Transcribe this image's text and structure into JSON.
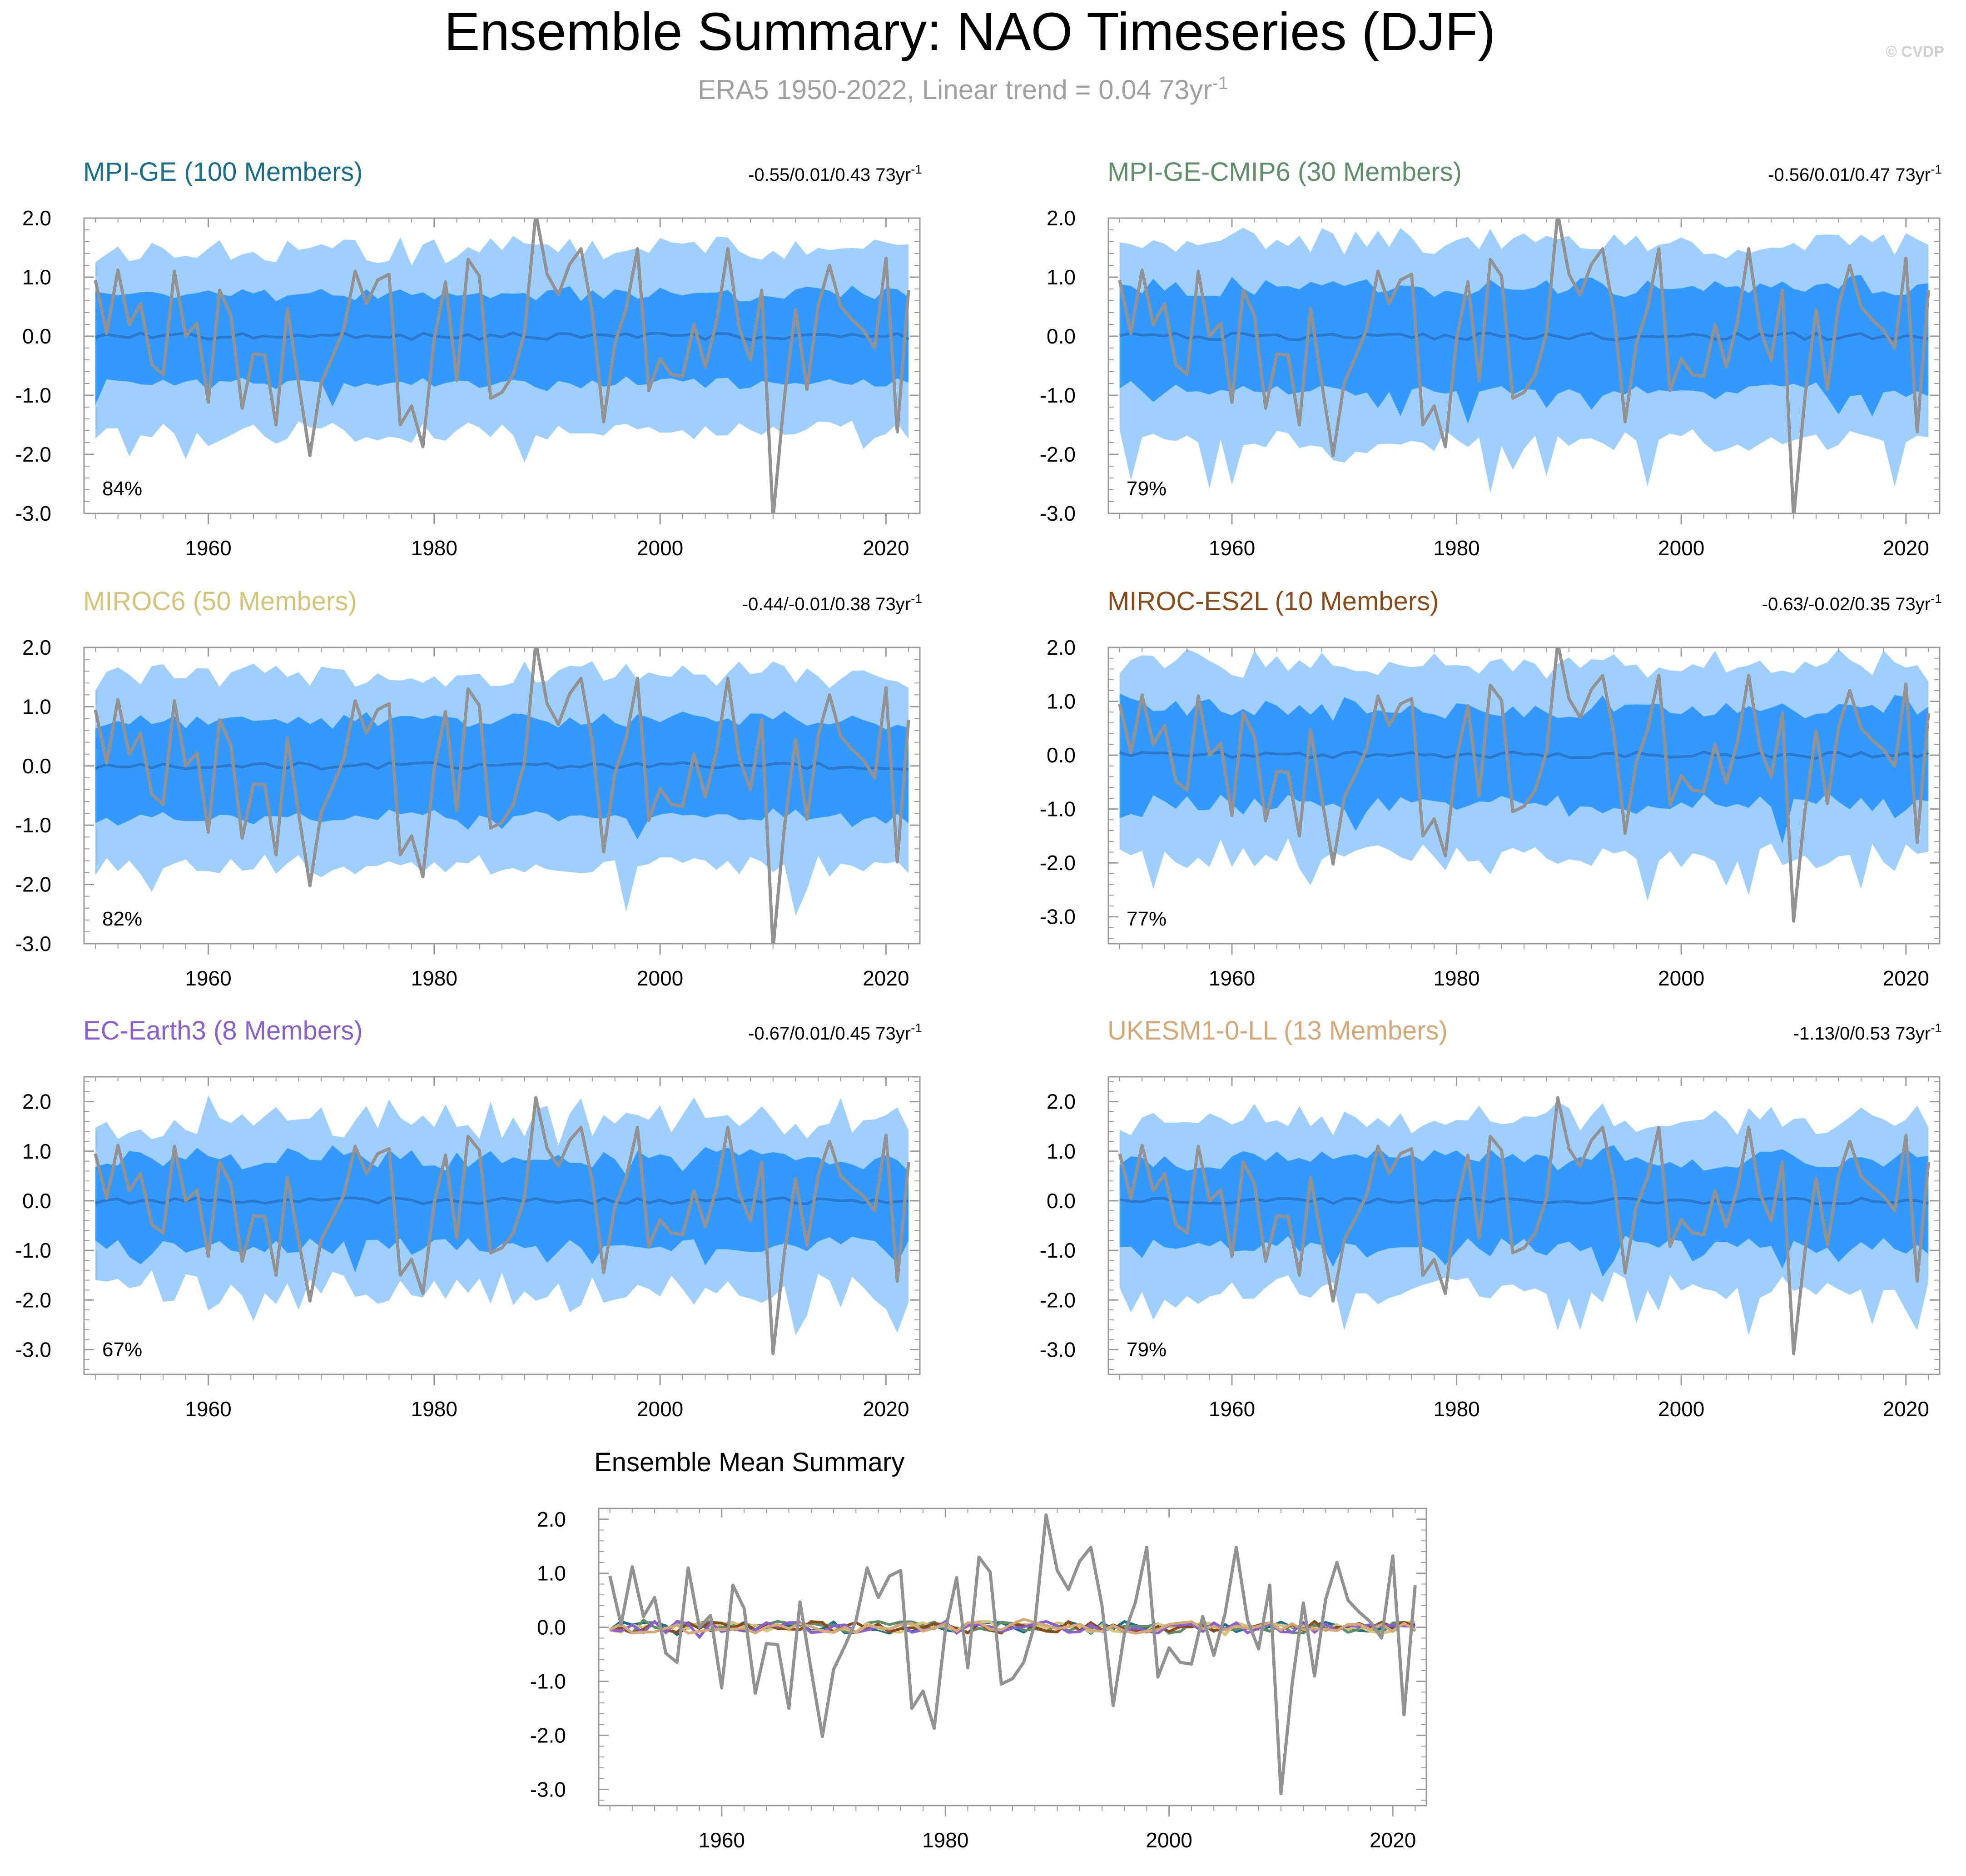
{
  "title": "Ensemble Summary: NAO Timeseries (DJF)",
  "subtitle": {
    "text": "ERA5 1950-2022, Linear trend = 0.04 73yr",
    "superscript": "-1"
  },
  "watermark": "© CVDP",
  "colors": {
    "outer_band": "#9fcfff",
    "inner_band": "#3399ff",
    "ens_mean_line": "#2b79cc",
    "era5_line": "#929292",
    "axis": "#9a9a9a"
  },
  "era5_series": [
    0.95,
    0.05,
    1.12,
    0.2,
    0.55,
    -0.48,
    -0.65,
    1.1,
    0.0,
    0.22,
    -1.12,
    0.78,
    0.35,
    -1.22,
    -0.3,
    -0.32,
    -1.5,
    0.47,
    -0.8,
    -2.02,
    -0.78,
    -0.35,
    0.12,
    1.1,
    0.55,
    0.95,
    1.05,
    -1.5,
    -1.18,
    -1.87,
    -0.05,
    0.92,
    -0.75,
    1.3,
    1.02,
    -1.05,
    -0.95,
    -0.65,
    0.06,
    2.08,
    1.05,
    0.7,
    1.22,
    1.48,
    0.4,
    -1.45,
    -0.12,
    0.47,
    1.48,
    -0.92,
    -0.38,
    -0.65,
    -0.68,
    0.2,
    -0.52,
    0.25,
    1.48,
    0.14,
    -0.4,
    0.78,
    -3.08,
    -1.05,
    0.45,
    -0.9,
    0.52,
    1.2,
    0.5,
    0.28,
    0.1,
    -0.2,
    1.32,
    -1.62,
    0.78
  ],
  "chart_data": [
    {
      "type": "area",
      "name": "MPI-GE",
      "title": "MPI-GE (100 Members)",
      "title_color": "#1b6e8a",
      "stats": "-0.55/0.01/0.43 73yr",
      "stats_sup": "-1",
      "pct": "84%",
      "x_start": 1950,
      "x_end": 2022,
      "xlim": [
        1949,
        2023
      ],
      "ylim": [
        -3.0,
        2.0
      ],
      "yticks": [
        "2.0",
        "1.0",
        "0.0",
        "-1.0",
        "-2.0",
        "-3.0"
      ],
      "xticks": [
        "1960",
        "1980",
        "2000",
        "2020"
      ],
      "band_outer": [
        1.45,
        1.45
      ],
      "band_inner": [
        0.72,
        0.72
      ],
      "mean": 0.0,
      "seed": 11
    },
    {
      "type": "area",
      "name": "MPI-GE-CMIP6",
      "title": "MPI-GE-CMIP6 (30 Members)",
      "title_color": "#5f8f69",
      "stats": "-0.56/0.01/0.47 73yr",
      "stats_sup": "-1",
      "pct": "79%",
      "x_start": 1950,
      "x_end": 2022,
      "xlim": [
        1949,
        2023
      ],
      "ylim": [
        -3.0,
        2.0
      ],
      "yticks": [
        "2.0",
        "1.0",
        "0.0",
        "-1.0",
        "-2.0",
        "-3.0"
      ],
      "xticks": [
        "1960",
        "1980",
        "2000",
        "2020"
      ],
      "band_outer": [
        1.55,
        1.65
      ],
      "band_inner": [
        0.78,
        0.9
      ],
      "mean": 0.0,
      "seed": 23
    },
    {
      "type": "area",
      "name": "MIROC6",
      "title": "MIROC6 (50 Members)",
      "title_color": "#d4c47a",
      "stats": "-0.44/-0.01/0.38 73yr",
      "stats_sup": "-1",
      "pct": "82%",
      "x_start": 1950,
      "x_end": 2022,
      "xlim": [
        1949,
        2023
      ],
      "ylim": [
        -3.0,
        2.0
      ],
      "yticks": [
        "2.0",
        "1.0",
        "0.0",
        "-1.0",
        "-2.0",
        "-3.0"
      ],
      "xticks": [
        "1960",
        "1980",
        "2000",
        "2020"
      ],
      "band_outer": [
        1.5,
        1.55
      ],
      "band_inner": [
        0.75,
        0.8
      ],
      "mean": 0.0,
      "seed": 37
    },
    {
      "type": "area",
      "name": "MIROC-ES2L",
      "title": "MIROC-ES2L (10 Members)",
      "title_color": "#8a4a1a",
      "stats": "-0.63/-0.02/0.35 73yr",
      "stats_sup": "-1",
      "pct": "77%",
      "x_start": 1950,
      "x_end": 2022,
      "xlim": [
        1949,
        2023
      ],
      "ylim": [
        -3.5,
        2.0
      ],
      "yticks": [
        "2.0",
        "1.0",
        "0.0",
        "-1.0",
        "-2.0",
        "-3.0"
      ],
      "xticks": [
        "1960",
        "1980",
        "2000",
        "2020"
      ],
      "band_outer": [
        1.5,
        1.9
      ],
      "band_inner": [
        0.7,
        1.05
      ],
      "mean": 0.0,
      "seed": 41
    },
    {
      "type": "area",
      "name": "EC-Earth3",
      "title": "EC-Earth3 (8 Members)",
      "title_color": "#8a5fcf",
      "stats": "-0.67/0.01/0.45 73yr",
      "stats_sup": "-1",
      "pct": "67%",
      "x_start": 1950,
      "x_end": 2022,
      "xlim": [
        1949,
        2023
      ],
      "ylim": [
        -3.5,
        2.5
      ],
      "yticks": [
        "2.0",
        "1.0",
        "0.0",
        "-1.0",
        "-2.0",
        "-3.0"
      ],
      "xticks": [
        "1960",
        "1980",
        "2000",
        "2020"
      ],
      "band_outer": [
        1.3,
        1.95
      ],
      "band_inner": [
        0.65,
        1.05
      ],
      "mean": 0.0,
      "seed": 53
    },
    {
      "type": "area",
      "name": "UKESM1-0-LL",
      "title": "UKESM1-0-LL (13 Members)",
      "title_color": "#d4a878",
      "stats": "-1.13/0/0.53 73yr",
      "stats_sup": "-1",
      "pct": "79%",
      "x_start": 1950,
      "x_end": 2022,
      "xlim": [
        1949,
        2023
      ],
      "ylim": [
        -3.5,
        2.5
      ],
      "yticks": [
        "2.0",
        "1.0",
        "0.0",
        "-1.0",
        "-2.0",
        "-3.0"
      ],
      "xticks": [
        "1960",
        "1980",
        "2000",
        "2020"
      ],
      "band_outer": [
        1.45,
        1.85
      ],
      "band_inner": [
        0.7,
        1.0
      ],
      "mean": 0.0,
      "seed": 67
    },
    {
      "type": "line",
      "name": "Ensemble Mean Summary",
      "title": "Ensemble Mean Summary",
      "title_color": "#000000",
      "x_start": 1950,
      "x_end": 2022,
      "xlim": [
        1949,
        2023
      ],
      "ylim": [
        -3.3,
        2.2
      ],
      "yticks": [
        "2.0",
        "1.0",
        "0.0",
        "-1.0",
        "-2.0",
        "-3.0"
      ],
      "xticks": [
        "1960",
        "1980",
        "2000",
        "2020"
      ],
      "series": [
        {
          "name": "MPI-GE",
          "color": "#1b6e8a",
          "seed": 101
        },
        {
          "name": "MPI-GE-CMIP6",
          "color": "#5f8f69",
          "seed": 103
        },
        {
          "name": "MIROC6",
          "color": "#d4c47a",
          "seed": 107
        },
        {
          "name": "MIROC-ES2L",
          "color": "#8a4a1a",
          "seed": 109
        },
        {
          "name": "EC-Earth3",
          "color": "#8a5fcf",
          "seed": 113
        },
        {
          "name": "UKESM1-0-LL",
          "color": "#d4a878",
          "seed": 127
        }
      ]
    }
  ]
}
